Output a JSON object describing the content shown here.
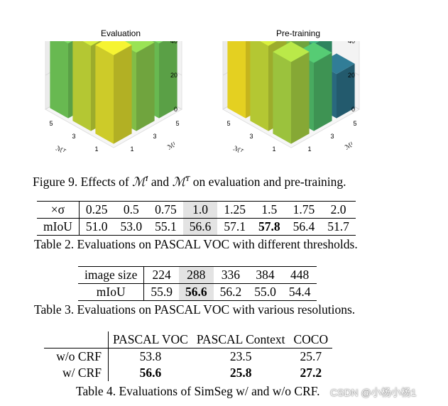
{
  "chart_data": [
    {
      "type": "bar3d",
      "title": "Evaluation",
      "zticks": [
        "0",
        "20",
        "40"
      ],
      "x_axis": {
        "label": "ℳᵀ",
        "ticks": [
          "1",
          "3",
          "5"
        ]
      },
      "y_axis": {
        "label": "ℳᴵ",
        "ticks": [
          "1",
          "3",
          "5"
        ]
      },
      "bars_height": [
        [
          52,
          46,
          44
        ],
        [
          50,
          48,
          40
        ],
        [
          44,
          42,
          36
        ]
      ]
    },
    {
      "type": "bar3d",
      "title": "Pre-training",
      "zticks": [
        "0",
        "20",
        "40"
      ],
      "x_axis": {
        "label": "ℳᵀ",
        "ticks": [
          "1",
          "3",
          "5"
        ]
      },
      "y_axis": {
        "label": "ℳᴵ",
        "ticks": [
          "1",
          "3",
          "5"
        ]
      },
      "bars_height": [
        [
          48,
          40,
          26
        ],
        [
          50,
          46,
          36
        ],
        [
          54,
          52,
          48
        ]
      ]
    }
  ],
  "figure_caption": {
    "prefix": "Figure 9. Effects of ",
    "mi": "ℳ",
    "mi_sup": "I",
    "and": " and ",
    "mt": "ℳ",
    "mt_sup": "T",
    "suffix": " on evaluation and pre-training."
  },
  "table2": {
    "row_header_1": "×σ",
    "header": [
      "0.25",
      "0.5",
      "0.75",
      "1.0",
      "1.25",
      "1.5",
      "1.75",
      "2.0"
    ],
    "row_header_2": "mIoU",
    "values": [
      "51.0",
      "53.0",
      "55.1",
      "56.6",
      "57.1",
      "57.8",
      "56.4",
      "51.7"
    ],
    "caption": "Table 2. Evaluations on PASCAL VOC with different thresholds."
  },
  "table3": {
    "row_header_1": "image size",
    "header": [
      "224",
      "288",
      "336",
      "384",
      "448"
    ],
    "row_header_2": "mIoU",
    "values": [
      "55.9",
      "56.6",
      "56.2",
      "55.0",
      "54.4"
    ],
    "caption": "Table 3. Evaluations on PASCAL VOC with various resolutions."
  },
  "table4": {
    "header": [
      "PASCAL VOC",
      "PASCAL Context",
      "COCO"
    ],
    "rows": [
      {
        "label": "w/o CRF",
        "values": [
          "53.8",
          "23.5",
          "25.7"
        ]
      },
      {
        "label": "w/ CRF",
        "values": [
          "56.6",
          "25.8",
          "27.2"
        ]
      }
    ],
    "caption": "Table 4. Evaluations of SimSeg w/ and w/o CRF."
  },
  "watermark": "CSDN @小杨小杨1"
}
